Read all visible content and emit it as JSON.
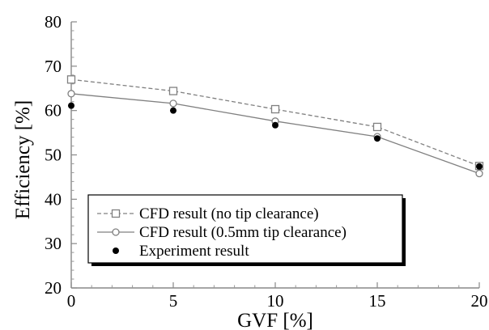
{
  "chart_data": {
    "type": "line",
    "title": "",
    "xlabel": "GVF [%]",
    "ylabel": "Efficiency [%]",
    "xlim": [
      0,
      20
    ],
    "ylim": [
      20,
      80
    ],
    "x_ticks": [
      "0",
      "5",
      "10",
      "15",
      "20"
    ],
    "y_ticks": [
      "20",
      "30",
      "40",
      "50",
      "60",
      "70",
      "80"
    ],
    "grid": false,
    "legend_position": "lower-left",
    "series": [
      {
        "name": "CFD result (no tip clearance)",
        "style": "dashed line, open square markers",
        "color": "#808080",
        "x": [
          0,
          5,
          10,
          15,
          20
        ],
        "y": [
          67.0,
          64.4,
          60.3,
          56.3,
          47.5
        ]
      },
      {
        "name": "CFD result (0.5mm tip clearance)",
        "style": "solid line, open circle markers",
        "color": "#808080",
        "x": [
          0,
          5,
          10,
          15,
          20
        ],
        "y": [
          63.8,
          61.6,
          57.6,
          54.1,
          45.8
        ]
      },
      {
        "name": "Experiment result",
        "style": "filled circle markers, no line",
        "color": "#000000",
        "x": [
          0,
          5,
          10,
          15,
          20
        ],
        "y": [
          61.1,
          60.0,
          56.7,
          53.7,
          47.4
        ]
      }
    ]
  }
}
